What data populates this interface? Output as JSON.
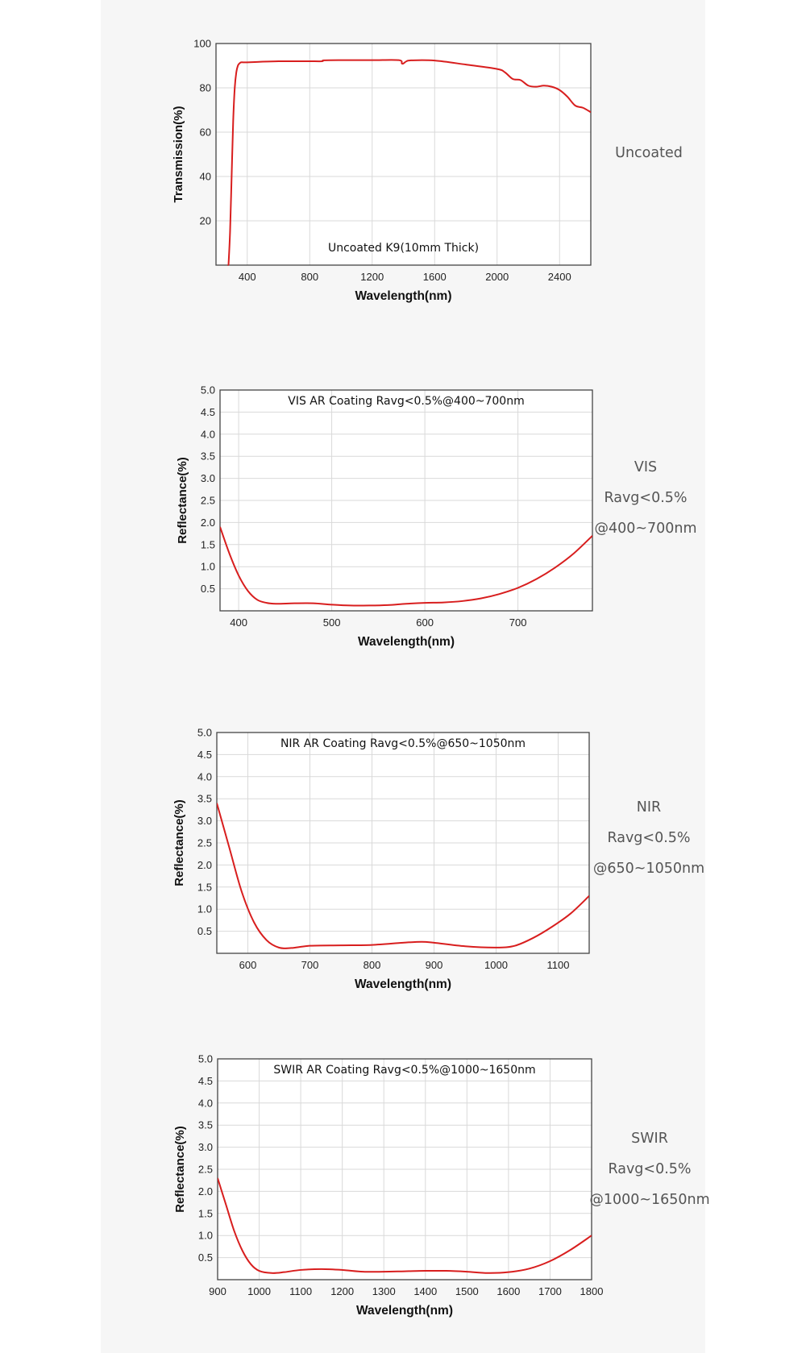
{
  "colors": {
    "curve": "#d81e1e",
    "grid": "#d9d9d9",
    "frame": "#444444",
    "plot_bg": "#ffffff",
    "panel_bg": "#f6f6f6"
  },
  "chart_data": [
    {
      "type": "line",
      "title": "Uncoated K9(10mm Thick)",
      "xlabel": "Wavelength(nm)",
      "ylabel": "Transmission(%)",
      "xlim": [
        200,
        2600
      ],
      "ylim": [
        0,
        100
      ],
      "xticks": [
        400,
        800,
        1200,
        1600,
        2000,
        2400
      ],
      "yticks": [
        20,
        40,
        60,
        80,
        100
      ],
      "grid": true,
      "series": [
        {
          "x": [
            280,
            290,
            300,
            310,
            320,
            330,
            340,
            350,
            360,
            380,
            400,
            500,
            600,
            700,
            800,
            880,
            890,
            1000,
            1200,
            1370,
            1390,
            1400,
            1420,
            1450,
            1600,
            1800,
            2000,
            2050,
            2100,
            2150,
            2200,
            2250,
            2300,
            2350,
            2400,
            2450,
            2500,
            2550,
            2600
          ],
          "y": [
            0,
            15,
            40,
            65,
            80,
            87,
            90,
            91,
            91.5,
            91.5,
            91.5,
            91.8,
            92,
            92,
            92,
            92,
            92.4,
            92.5,
            92.5,
            92.5,
            91,
            91,
            92,
            92.4,
            92.3,
            90.5,
            88.5,
            87,
            84,
            83.5,
            81,
            80.5,
            81,
            80.5,
            79,
            76,
            72,
            71,
            69
          ]
        }
      ],
      "side_label": [
        "Uncoated"
      ]
    },
    {
      "type": "line",
      "title": "VIS AR Coating Ravg<0.5%@400~700nm",
      "xlabel": "Wavelength(nm)",
      "ylabel": "Reflectance(%)",
      "xlim": [
        380,
        780
      ],
      "ylim": [
        0,
        5
      ],
      "xticks": [
        400,
        500,
        600,
        700
      ],
      "yticks": [
        0.5,
        1.0,
        1.5,
        2.0,
        2.5,
        3.0,
        3.5,
        4.0,
        4.5,
        5.0
      ],
      "ytick_labels": [
        "0.5",
        "1.0",
        "1.5",
        "2.0",
        "2.5",
        "3.0",
        "3.5",
        "4.0",
        "4.5",
        "5.0"
      ],
      "grid": true,
      "series": [
        {
          "x": [
            380,
            390,
            400,
            410,
            420,
            430,
            440,
            460,
            480,
            500,
            520,
            540,
            560,
            580,
            600,
            620,
            640,
            660,
            680,
            700,
            720,
            740,
            760,
            780
          ],
          "y": [
            1.9,
            1.3,
            0.8,
            0.45,
            0.25,
            0.18,
            0.16,
            0.17,
            0.17,
            0.14,
            0.12,
            0.12,
            0.13,
            0.16,
            0.18,
            0.19,
            0.22,
            0.28,
            0.38,
            0.52,
            0.72,
            0.98,
            1.3,
            1.7
          ]
        }
      ],
      "side_label": [
        "VIS",
        "Ravg<0.5%",
        "@400~700nm"
      ]
    },
    {
      "type": "line",
      "title": "NIR AR Coating Ravg<0.5%@650~1050nm",
      "xlabel": "Wavelength(nm)",
      "ylabel": "Reflectance(%)",
      "xlim": [
        550,
        1150
      ],
      "ylim": [
        0,
        5
      ],
      "xticks": [
        600,
        700,
        800,
        900,
        1000,
        1100
      ],
      "yticks": [
        0.5,
        1.0,
        1.5,
        2.0,
        2.5,
        3.0,
        3.5,
        4.0,
        4.5,
        5.0
      ],
      "ytick_labels": [
        "0.5",
        "1.0",
        "1.5",
        "2.0",
        "2.5",
        "3.0",
        "3.5",
        "4.0",
        "4.5",
        "5.0"
      ],
      "grid": true,
      "series": [
        {
          "x": [
            550,
            570,
            590,
            610,
            630,
            650,
            670,
            700,
            750,
            800,
            850,
            880,
            900,
            950,
            1000,
            1030,
            1060,
            1090,
            1120,
            1150
          ],
          "y": [
            3.4,
            2.4,
            1.4,
            0.7,
            0.3,
            0.13,
            0.12,
            0.17,
            0.18,
            0.19,
            0.24,
            0.26,
            0.24,
            0.16,
            0.13,
            0.17,
            0.35,
            0.6,
            0.9,
            1.3
          ]
        }
      ],
      "side_label": [
        "NIR",
        "Ravg<0.5%",
        "@650~1050nm"
      ]
    },
    {
      "type": "line",
      "title": "SWIR AR Coating Ravg<0.5%@1000~1650nm",
      "xlabel": "Wavelength(nm)",
      "ylabel": "Reflectance(%)",
      "xlim": [
        900,
        1800
      ],
      "ylim": [
        0,
        5
      ],
      "xticks": [
        900,
        1000,
        1100,
        1200,
        1300,
        1400,
        1500,
        1600,
        1700,
        1800
      ],
      "yticks": [
        0.5,
        1.0,
        1.5,
        2.0,
        2.5,
        3.0,
        3.5,
        4.0,
        4.5,
        5.0
      ],
      "ytick_labels": [
        "0.5",
        "1.0",
        "1.5",
        "2.0",
        "2.5",
        "3.0",
        "3.5",
        "4.0",
        "4.5",
        "5.0"
      ],
      "grid": true,
      "series": [
        {
          "x": [
            900,
            920,
            940,
            960,
            980,
            1000,
            1030,
            1060,
            1100,
            1150,
            1200,
            1250,
            1300,
            1350,
            1400,
            1450,
            1500,
            1550,
            1600,
            1650,
            1700,
            1750,
            1800
          ],
          "y": [
            2.3,
            1.7,
            1.1,
            0.65,
            0.35,
            0.2,
            0.15,
            0.17,
            0.22,
            0.24,
            0.22,
            0.18,
            0.18,
            0.19,
            0.2,
            0.2,
            0.18,
            0.15,
            0.17,
            0.25,
            0.42,
            0.68,
            1.0
          ]
        }
      ],
      "side_label": [
        "SWIR",
        "Ravg<0.5%",
        "@1000~1650nm"
      ]
    }
  ]
}
